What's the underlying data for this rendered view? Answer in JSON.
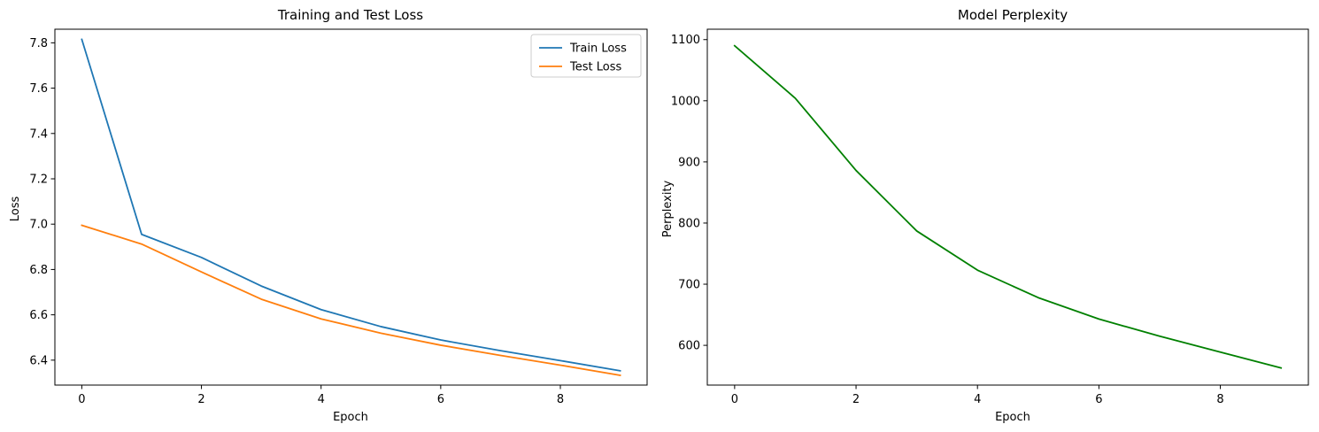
{
  "chart_data": [
    {
      "type": "line",
      "title": "Training and Test Loss",
      "xlabel": "Epoch",
      "ylabel": "Loss",
      "xlim": [
        -0.45,
        9.45
      ],
      "ylim": [
        6.29,
        7.86
      ],
      "xticks": [
        0,
        2,
        4,
        6,
        8
      ],
      "yticks": [
        6.4,
        6.6,
        6.8,
        7.0,
        7.2,
        7.4,
        7.6,
        7.8
      ],
      "x": [
        0,
        1,
        2,
        3,
        4,
        5,
        6,
        7,
        8,
        9
      ],
      "series": [
        {
          "name": "Train Loss",
          "color": "#1f77b4",
          "values": [
            7.815,
            6.955,
            6.853,
            6.727,
            6.623,
            6.548,
            6.489,
            6.442,
            6.398,
            6.353
          ]
        },
        {
          "name": "Test Loss",
          "color": "#ff7f0e",
          "values": [
            6.995,
            6.912,
            6.789,
            6.669,
            6.582,
            6.519,
            6.466,
            6.421,
            6.378,
            6.333
          ]
        }
      ],
      "legend": "top-right",
      "grid": false
    },
    {
      "type": "line",
      "title": "Model Perplexity",
      "xlabel": "Epoch",
      "ylabel": "Perplexity",
      "xlim": [
        -0.45,
        9.45
      ],
      "ylim": [
        535,
        1117
      ],
      "xticks": [
        0,
        2,
        4,
        6,
        8
      ],
      "yticks": [
        600,
        700,
        800,
        900,
        1000,
        1100
      ],
      "x": [
        0,
        1,
        2,
        3,
        4,
        5,
        6,
        7,
        8,
        9
      ],
      "series": [
        {
          "color": "#008000",
          "values": [
            1090,
            1004,
            886,
            787,
            723,
            678,
            643,
            615,
            589,
            563
          ]
        }
      ],
      "legend": "none",
      "grid": false
    }
  ]
}
